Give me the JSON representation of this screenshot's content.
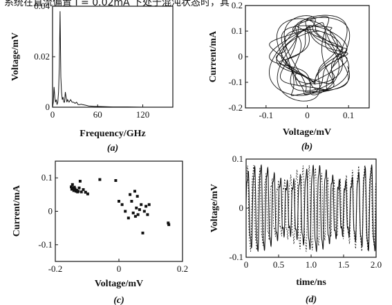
{
  "page": {
    "top_strip_text": "系统在直流偏置 I = 0.02mA 下处于混沌状态时，其"
  },
  "chart_data": [
    {
      "id": "a",
      "type": "line",
      "caption": "(a)",
      "xlabel": "Frequency/GHz",
      "ylabel": "Voltage/mV",
      "xlim": [
        0,
        160
      ],
      "ylim": [
        0,
        0.04
      ],
      "xticks": [
        0,
        60,
        120
      ],
      "xtick_labels": [
        "0",
        "60",
        "120"
      ],
      "yticks": [
        0,
        0.02,
        0.04
      ],
      "ytick_labels": [
        "0",
        "0.02",
        "0.04"
      ],
      "x": [
        0,
        1,
        2,
        3,
        4,
        5,
        6,
        7,
        8,
        9,
        10,
        11,
        12,
        13,
        14,
        15,
        16,
        17,
        18,
        19,
        20,
        22,
        24,
        26,
        28,
        30,
        32,
        34,
        36,
        38,
        40,
        44,
        48,
        52,
        56,
        60,
        70,
        80,
        100,
        120,
        140,
        160
      ],
      "y": [
        0.0,
        0.002,
        0.008,
        0.004,
        0.002,
        0.003,
        0.001,
        0.002,
        0.006,
        0.016,
        0.038,
        0.012,
        0.006,
        0.003,
        0.004,
        0.002,
        0.002,
        0.006,
        0.004,
        0.002,
        0.003,
        0.002,
        0.003,
        0.002,
        0.002,
        0.0015,
        0.002,
        0.001,
        0.001,
        0.0012,
        0.001,
        0.0008,
        0.0005,
        0.0004,
        0.0003,
        0.0003,
        0.0002,
        0.0001,
        0.0001,
        0.0,
        0.0,
        0.0
      ]
    },
    {
      "id": "b",
      "type": "line",
      "caption": "(b)",
      "xlabel": "Voltage/mV",
      "ylabel": "Current/mA",
      "xlim": [
        -0.15,
        0.15
      ],
      "ylim": [
        -0.2,
        0.2
      ],
      "xticks": [
        -0.1,
        0,
        0.1
      ],
      "xtick_labels": [
        "-0.1",
        "0",
        "0.1"
      ],
      "yticks": [
        -0.2,
        -0.1,
        0,
        0.1,
        0.2
      ],
      "ytick_labels": [
        "-0.2",
        "-0.1",
        "0",
        "0.1",
        "0.2"
      ],
      "attractor": {
        "v_amp": 0.09,
        "i_amp": 0.165,
        "loops": 14
      }
    },
    {
      "id": "c",
      "type": "scatter",
      "caption": "(c)",
      "xlabel": "Voltage/mV",
      "ylabel": "Current/mA",
      "xlim": [
        -0.2,
        0.2
      ],
      "ylim": [
        -0.15,
        0.15
      ],
      "xticks": [
        -0.2,
        0,
        0.2
      ],
      "xtick_labels": [
        "-0.2",
        "0",
        "0.2"
      ],
      "yticks": [
        -0.1,
        0,
        0.1
      ],
      "ytick_labels": [
        "-0.1",
        "0",
        "0.1"
      ],
      "points": [
        [
          -0.15,
          0.073
        ],
        [
          -0.148,
          0.066
        ],
        [
          -0.146,
          0.08
        ],
        [
          -0.144,
          0.07
        ],
        [
          -0.142,
          0.062
        ],
        [
          -0.14,
          0.072
        ],
        [
          -0.138,
          0.067
        ],
        [
          -0.135,
          0.06
        ],
        [
          -0.133,
          0.063
        ],
        [
          -0.13,
          0.058
        ],
        [
          -0.128,
          0.06
        ],
        [
          -0.125,
          0.07
        ],
        [
          -0.122,
          0.09
        ],
        [
          -0.118,
          0.058
        ],
        [
          -0.112,
          0.065
        ],
        [
          -0.105,
          0.057
        ],
        [
          -0.098,
          0.052
        ],
        [
          -0.06,
          0.095
        ],
        [
          -0.01,
          0.092
        ],
        [
          0.0,
          0.03
        ],
        [
          0.01,
          0.02
        ],
        [
          0.02,
          0.0
        ],
        [
          0.03,
          -0.02
        ],
        [
          0.035,
          0.05
        ],
        [
          0.04,
          0.03
        ],
        [
          0.045,
          -0.005
        ],
        [
          0.05,
          0.06
        ],
        [
          0.052,
          -0.015
        ],
        [
          0.055,
          0.01
        ],
        [
          0.058,
          0.045
        ],
        [
          0.06,
          -0.01
        ],
        [
          0.065,
          0.005
        ],
        [
          0.07,
          0.02
        ],
        [
          0.075,
          -0.065
        ],
        [
          0.08,
          0.0
        ],
        [
          0.085,
          0.015
        ],
        [
          0.09,
          -0.01
        ],
        [
          0.095,
          0.02
        ],
        [
          0.155,
          -0.035
        ],
        [
          0.157,
          -0.04
        ]
      ]
    },
    {
      "id": "d",
      "type": "line",
      "caption": "(d)",
      "xlabel": "time/ns",
      "ylabel": "Voltage/mV",
      "xlim": [
        0,
        2.0
      ],
      "ylim": [
        -0.1,
        0.1
      ],
      "xticks": [
        0,
        0.5,
        1.0,
        1.5,
        2.0
      ],
      "xtick_labels": [
        "0",
        "0.5",
        "1.0",
        "1.5",
        "2.0"
      ],
      "yticks": [
        -0.1,
        0,
        0.1
      ],
      "ytick_labels": [
        "-0.1",
        "0",
        "0.1"
      ],
      "series": [
        {
          "style": "solid",
          "period_ns": 0.1,
          "amplitude_mv": 0.09
        },
        {
          "style": "dashed",
          "period_ns": 0.095,
          "amplitude_mv": 0.09,
          "phase": 0.6
        }
      ]
    }
  ]
}
